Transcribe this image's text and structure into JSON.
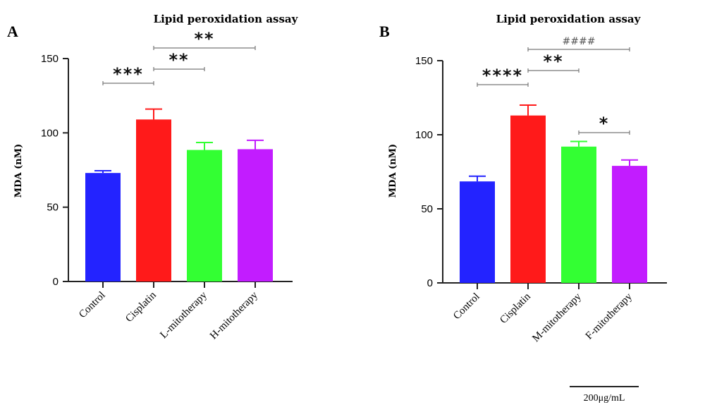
{
  "chart_data": [
    {
      "panel": "A",
      "type": "bar",
      "title": "Lipid peroxidation assay",
      "ylabel": "MDA (nM)",
      "xlabel": "",
      "ylim": [
        0,
        150
      ],
      "yticks": [
        0,
        50,
        100,
        150
      ],
      "categories": [
        "Control",
        "Cisplatin",
        "L-mitotherapy",
        "H-mitotherapy"
      ],
      "values": [
        73,
        109,
        88.5,
        89
      ],
      "errors": [
        1.5,
        7,
        5,
        6
      ],
      "colors": [
        "#2323ff",
        "#ff1a1a",
        "#33ff33",
        "#c21cff"
      ],
      "significance": [
        {
          "from": 0,
          "to": 1,
          "label": "***",
          "row": 0
        },
        {
          "from": 1,
          "to": 2,
          "label": "**",
          "row": 1
        },
        {
          "from": 1,
          "to": 3,
          "label": "**",
          "row": 2
        }
      ]
    },
    {
      "panel": "B",
      "type": "bar",
      "title": "Lipid peroxidation assay",
      "ylabel": "MDA (nM)",
      "xlabel": "",
      "ylim": [
        0,
        150
      ],
      "yticks": [
        0,
        50,
        100,
        150
      ],
      "categories": [
        "Control",
        "Cisplatin",
        "M-mitotherapy",
        "F-mitotherapy"
      ],
      "values": [
        68.5,
        113,
        92,
        79
      ],
      "errors": [
        3.5,
        7,
        3.5,
        4
      ],
      "colors": [
        "#2323ff",
        "#ff1a1a",
        "#33ff33",
        "#c21cff"
      ],
      "significance": [
        {
          "from": 0,
          "to": 1,
          "label": "****",
          "row": 0
        },
        {
          "from": 1,
          "to": 2,
          "label": "**",
          "row": 1
        },
        {
          "from": 1,
          "to": 3,
          "label": "####",
          "row": 2
        },
        {
          "from": 2,
          "to": 3,
          "label": "*",
          "row": 3
        }
      ]
    }
  ],
  "scale_bar": {
    "label": "200μg/mL"
  }
}
